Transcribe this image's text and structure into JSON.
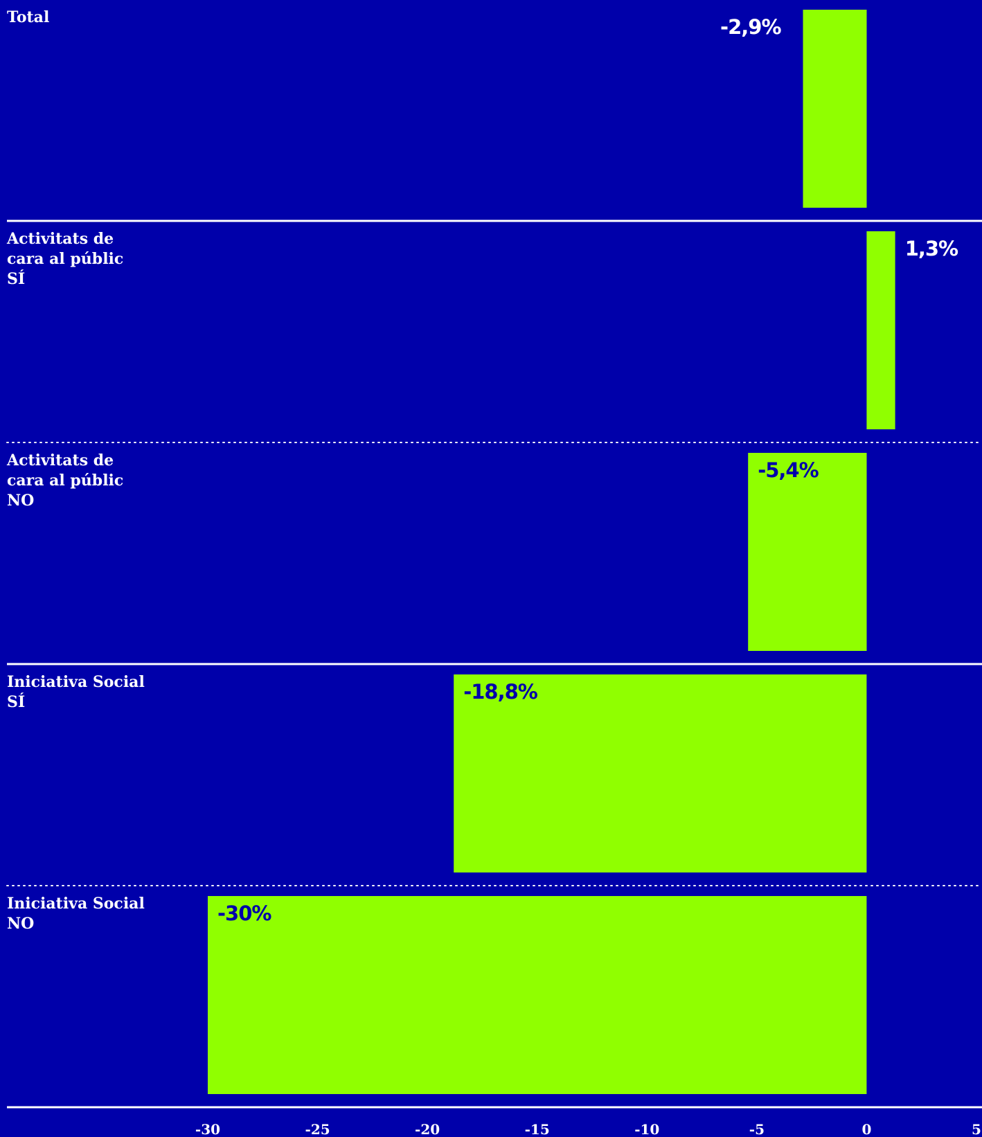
{
  "chart_data": {
    "type": "bar",
    "orientation": "horizontal",
    "categories": [
      [
        "Total"
      ],
      [
        "Activitats de",
        "cara al públic",
        "SÍ"
      ],
      [
        "Activitats de",
        "cara al públic",
        "NO"
      ],
      [
        "Iniciativa Social",
        "SÍ"
      ],
      [
        "Iniciativa Social",
        "NO"
      ]
    ],
    "values": [
      -2.9,
      1.3,
      -5.4,
      -18.8,
      -30
    ],
    "value_labels": [
      "-2,9%",
      "1,3%",
      "-5,4%",
      "-18,8%",
      "-30%"
    ],
    "xlim": [
      -30,
      5
    ],
    "x_ticks": [
      -30,
      -25,
      -20,
      -15,
      -10,
      -5,
      0,
      5
    ],
    "x_tick_labels": [
      "-30",
      "-25",
      "-20",
      "-15",
      "-10",
      "-5",
      "0",
      "5"
    ],
    "separators": [
      "solid",
      "dotted",
      "solid",
      "dotted",
      "solid"
    ],
    "grid": false,
    "legend": "none",
    "title": "",
    "xlabel": "",
    "ylabel": ""
  },
  "colors": {
    "background": "#0000AA",
    "bar": "#90FF00",
    "text": "#FFFFFF",
    "label_on_bar": "#0000AA",
    "separator": "#FFFFFF"
  }
}
